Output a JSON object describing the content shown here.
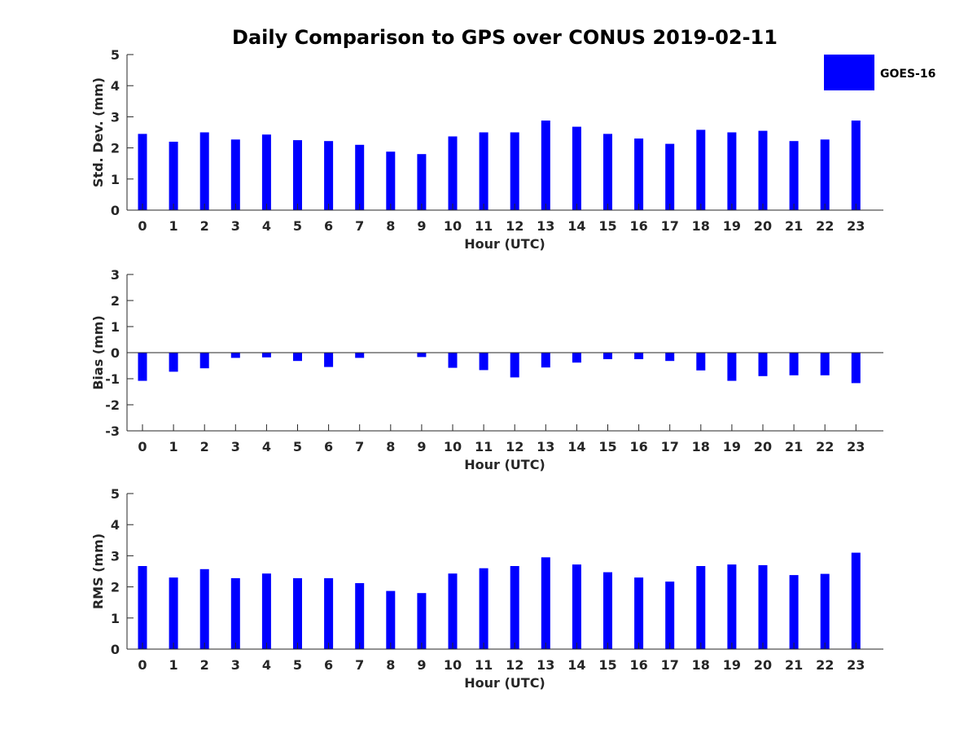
{
  "figure_title": "Daily Comparison to GPS over CONUS 2019-02-11",
  "legend": {
    "label": "GOES-16",
    "color": "#0000ff"
  },
  "chart_data": [
    {
      "type": "bar",
      "title": "Daily Comparison to GPS over CONUS 2019-02-11",
      "xlabel": "Hour (UTC)",
      "ylabel": "Std. Dev. (mm)",
      "ylim": [
        0,
        5
      ],
      "yticks": [
        0,
        1,
        2,
        3,
        4,
        5
      ],
      "categories": [
        "0",
        "1",
        "2",
        "3",
        "4",
        "5",
        "6",
        "7",
        "8",
        "9",
        "10",
        "11",
        "12",
        "13",
        "14",
        "15",
        "16",
        "17",
        "18",
        "19",
        "20",
        "21",
        "22",
        "23"
      ],
      "series": [
        {
          "name": "GOES-16",
          "color": "#0000ff",
          "values": [
            2.45,
            2.2,
            2.5,
            2.27,
            2.43,
            2.25,
            2.22,
            2.1,
            1.88,
            1.8,
            2.37,
            2.5,
            2.5,
            2.88,
            2.68,
            2.45,
            2.3,
            2.13,
            2.58,
            2.5,
            2.55,
            2.22,
            2.27,
            2.88
          ]
        }
      ]
    },
    {
      "type": "bar",
      "xlabel": "Hour (UTC)",
      "ylabel": "Bias (mm)",
      "ylim": [
        -3,
        3
      ],
      "yticks": [
        -3,
        -2,
        -1,
        0,
        1,
        2,
        3
      ],
      "categories": [
        "0",
        "1",
        "2",
        "3",
        "4",
        "5",
        "6",
        "7",
        "8",
        "9",
        "10",
        "11",
        "12",
        "13",
        "14",
        "15",
        "16",
        "17",
        "18",
        "19",
        "20",
        "21",
        "22",
        "23"
      ],
      "series": [
        {
          "name": "GOES-16",
          "color": "#0000ff",
          "values": [
            -1.08,
            -0.73,
            -0.6,
            -0.2,
            -0.18,
            -0.32,
            -0.55,
            -0.2,
            0,
            -0.17,
            -0.58,
            -0.67,
            -0.95,
            -0.57,
            -0.38,
            -0.25,
            -0.25,
            -0.32,
            -0.68,
            -1.08,
            -0.9,
            -0.87,
            -0.87,
            -1.17
          ]
        }
      ]
    },
    {
      "type": "bar",
      "xlabel": "Hour (UTC)",
      "ylabel": "RMS (mm)",
      "ylim": [
        0,
        5
      ],
      "yticks": [
        0,
        1,
        2,
        3,
        4,
        5
      ],
      "categories": [
        "0",
        "1",
        "2",
        "3",
        "4",
        "5",
        "6",
        "7",
        "8",
        "9",
        "10",
        "11",
        "12",
        "13",
        "14",
        "15",
        "16",
        "17",
        "18",
        "19",
        "20",
        "21",
        "22",
        "23"
      ],
      "series": [
        {
          "name": "GOES-16",
          "color": "#0000ff",
          "values": [
            2.67,
            2.3,
            2.57,
            2.28,
            2.43,
            2.28,
            2.28,
            2.12,
            1.87,
            1.8,
            2.43,
            2.6,
            2.67,
            2.95,
            2.72,
            2.47,
            2.3,
            2.17,
            2.67,
            2.72,
            2.7,
            2.38,
            2.42,
            3.1
          ]
        }
      ]
    }
  ]
}
